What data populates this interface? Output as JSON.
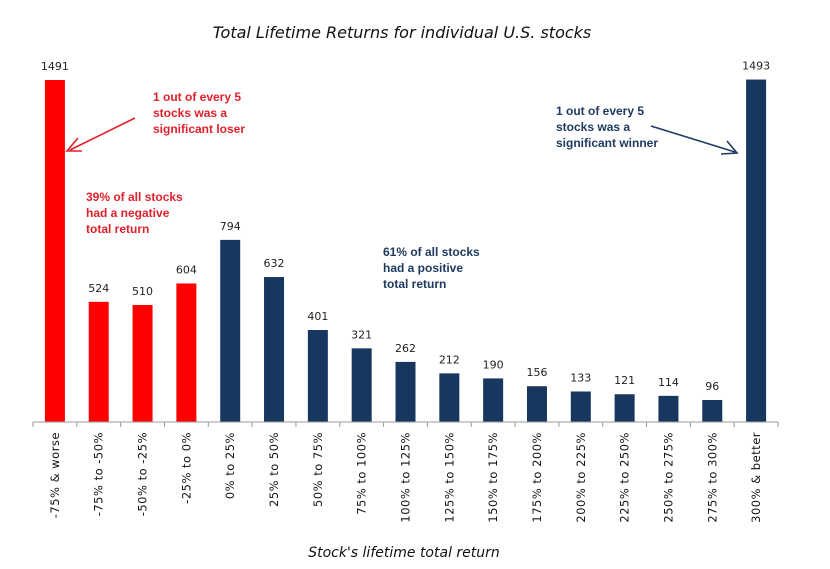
{
  "chart_data": {
    "type": "bar",
    "title": "Total Lifetime Returns for individual U.S. stocks",
    "xlabel": "Stock's lifetime total return",
    "ylabel": "",
    "ylim": [
      0,
      1500
    ],
    "grid": false,
    "categories": [
      "-75% & worse",
      "-75% to -50%",
      "-50% to -25%",
      "-25% to 0%",
      "0% to 25%",
      "25% to 50%",
      "50% to 75%",
      "75% to 100%",
      "100% to 125%",
      "125% to 150%",
      "150% to 175%",
      "175% to 200%",
      "200% to 225%",
      "225% to 250%",
      "250% to 275%",
      "275% to 300%",
      "300% & better"
    ],
    "values": [
      1491,
      524,
      510,
      604,
      794,
      632,
      401,
      321,
      262,
      212,
      190,
      156,
      133,
      121,
      114,
      96,
      1493
    ],
    "negative_count": 4,
    "colors": {
      "negative": "#ff0000",
      "positive": "#17375e",
      "neg_text": "#e0202a",
      "pos_text": "#1f3a60"
    },
    "annotations": {
      "loser": [
        "1 out of every 5",
        "stocks was a",
        "significant loser"
      ],
      "negative": [
        "39% of all stocks",
        "had a negative",
        "total return"
      ],
      "positive": [
        "61% of all stocks",
        "had a positive",
        "total return"
      ],
      "winner": [
        "1 out of every 5",
        "stocks was a",
        "significant  winner"
      ]
    }
  }
}
